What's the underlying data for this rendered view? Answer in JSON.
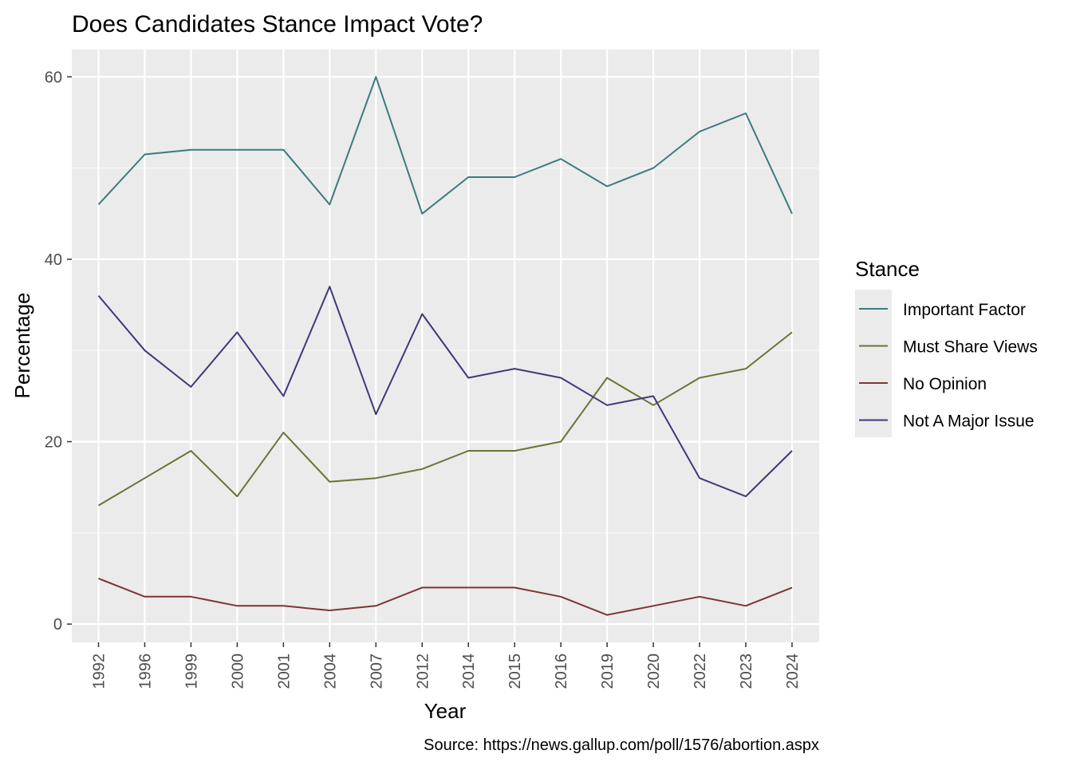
{
  "chart_data": {
    "type": "line",
    "title": "Does Candidates Stance Impact Vote?",
    "xlabel": "Year",
    "ylabel": "Percentage",
    "caption": "Source: https://news.gallup.com/poll/1576/abortion.aspx",
    "categories": [
      "1992",
      "1996",
      "1999",
      "2000",
      "2001",
      "2004",
      "2007",
      "2012",
      "2014",
      "2015",
      "2016",
      "2019",
      "2020",
      "2022",
      "2023",
      "2024"
    ],
    "ylim": [
      -2,
      63
    ],
    "yticks": [
      0,
      20,
      40,
      60
    ],
    "grid": true,
    "legend_title": "Stance",
    "legend_position": "right",
    "series": [
      {
        "name": "Important Factor",
        "color": "#3b7a80",
        "values": [
          46,
          51.5,
          52,
          52,
          52,
          46,
          60,
          45,
          49,
          49,
          51,
          48,
          50,
          54,
          56,
          45
        ]
      },
      {
        "name": "Must Share Views",
        "color": "#6b7335",
        "values": [
          13,
          16,
          19,
          14,
          21,
          15.6,
          16,
          17,
          19,
          19,
          20,
          27,
          24,
          27,
          28,
          32
        ]
      },
      {
        "name": "No Opinion",
        "color": "#7d3535",
        "values": [
          5,
          3,
          3,
          2,
          2,
          1.5,
          2,
          4,
          4,
          4,
          3,
          1,
          2,
          3,
          2,
          4
        ]
      },
      {
        "name": "Not A Major Issue",
        "color": "#3e3a78",
        "values": [
          36,
          30,
          26,
          32,
          25,
          37,
          23,
          34,
          27,
          28,
          27,
          24,
          25,
          16,
          14,
          19
        ]
      }
    ]
  }
}
